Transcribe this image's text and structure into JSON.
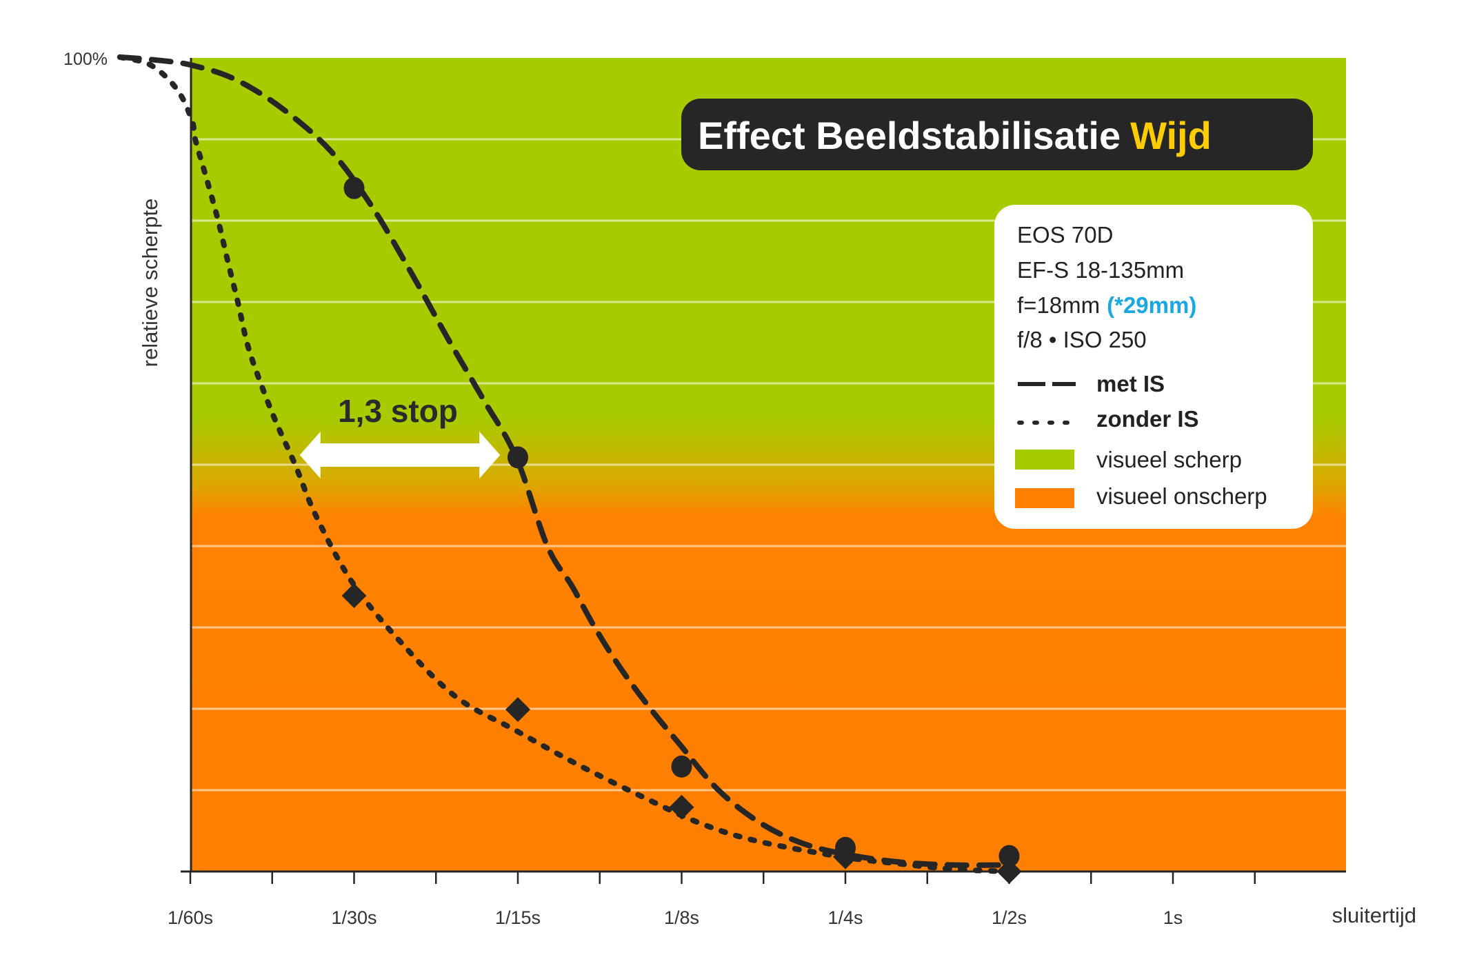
{
  "chart_data": {
    "type": "line",
    "title": "Effect Beeldstabilisatie",
    "title_highlight": "Wijd",
    "xlabel": "sluitertijd",
    "ylabel": "relatieve scherpte",
    "y_top_label": "100%",
    "ylim": [
      0,
      100
    ],
    "y_gridlines": [
      10,
      20,
      30,
      40,
      50,
      60,
      70,
      80,
      90
    ],
    "x_unit": "stops from 1/60s",
    "xlim": [
      0,
      7.1
    ],
    "categories": [
      "1/60s",
      "1/30s",
      "1/15s",
      "1/8s",
      "1/4s",
      "1/2s",
      "1s"
    ],
    "x_minor_ticks": [
      0.5,
      1.5,
      2.5,
      3.5,
      4.5,
      5.5,
      6.5
    ],
    "series": [
      {
        "name": "met IS",
        "style": "dashed",
        "marker": "circle",
        "points": [
          {
            "x": "1/30s",
            "stop": 1,
            "value": 84.0
          },
          {
            "x": "1/15s",
            "stop": 2,
            "value": 50.9
          },
          {
            "x": "1/8s",
            "stop": 3,
            "value": 12.9
          },
          {
            "x": "1/4s",
            "stop": 4,
            "value": 2.9
          },
          {
            "x": "1/2s",
            "stop": 5,
            "value": 1.9
          }
        ],
        "fit_curve": [
          [
            -0.43,
            100.1
          ],
          [
            -0.19,
            99.7
          ],
          [
            0.01,
            99.1
          ],
          [
            0.27,
            97.4
          ],
          [
            0.56,
            93.8
          ],
          [
            0.86,
            88.5
          ],
          [
            1.11,
            81.7
          ],
          [
            1.36,
            73.2
          ],
          [
            1.57,
            65.6
          ],
          [
            1.79,
            58.0
          ],
          [
            1.99,
            50.9
          ],
          [
            2.18,
            40.0
          ],
          [
            2.33,
            35.1
          ],
          [
            2.47,
            30.0
          ],
          [
            2.63,
            24.9
          ],
          [
            2.81,
            20.0
          ],
          [
            2.99,
            15.6
          ],
          [
            3.22,
            10.1
          ],
          [
            3.47,
            6.1
          ],
          [
            3.72,
            3.6
          ],
          [
            3.98,
            2.2
          ],
          [
            4.31,
            1.2
          ],
          [
            4.65,
            0.8
          ],
          [
            4.99,
            0.8
          ]
        ]
      },
      {
        "name": "zonder IS",
        "style": "dotted",
        "marker": "diamond",
        "points": [
          {
            "x": "1/30s",
            "stop": 1,
            "value": 33.9
          },
          {
            "x": "1/15s",
            "stop": 2,
            "value": 19.9
          },
          {
            "x": "1/8s",
            "stop": 3,
            "value": 7.9
          },
          {
            "x": "1/4s",
            "stop": 4,
            "value": 1.8
          },
          {
            "x": "1/2s",
            "stop": 5,
            "value": 0.0
          }
        ],
        "fit_curve": [
          [
            -0.43,
            100.1
          ],
          [
            -0.24,
            99.1
          ],
          [
            -0.08,
            96.1
          ],
          [
            0.01,
            92.3
          ],
          [
            0.03,
            90.0
          ],
          [
            0.1,
            85.1
          ],
          [
            0.17,
            80.0
          ],
          [
            0.23,
            74.9
          ],
          [
            0.29,
            70.0
          ],
          [
            0.35,
            64.7
          ],
          [
            0.43,
            60.0
          ],
          [
            0.52,
            55.4
          ],
          [
            0.64,
            50.0
          ],
          [
            0.77,
            43.6
          ],
          [
            0.99,
            35.5
          ],
          [
            1.28,
            28.3
          ],
          [
            1.62,
            21.5
          ],
          [
            1.99,
            17.3
          ],
          [
            2.37,
            13.1
          ],
          [
            2.8,
            8.8
          ],
          [
            3.13,
            5.8
          ],
          [
            3.47,
            3.7
          ],
          [
            3.98,
            1.8
          ],
          [
            4.31,
            1.0
          ],
          [
            4.65,
            0.3
          ],
          [
            4.99,
            0.0
          ]
        ]
      }
    ],
    "zones": [
      {
        "name": "visueel scherp",
        "color": "#A6CC00",
        "from": 60,
        "to": 100
      },
      {
        "name": "visueel onscherp",
        "color": "#FF7F00",
        "from": 0,
        "to": 45
      }
    ],
    "annotation": {
      "text": "1,3 stop",
      "arrow_from_stop": 0.66,
      "arrow_to_stop": 1.9,
      "at_value": 51
    },
    "legend": {
      "placement": "top-right",
      "info_lines": [
        "EOS 70D",
        "EF-S 18-135mm",
        "f=18mm",
        "f/8 • ISO 250"
      ],
      "info_highlight": "(*29mm)",
      "entries": [
        {
          "label": "met IS",
          "kind": "dashed-line"
        },
        {
          "label": "zonder IS",
          "kind": "dotted-line"
        },
        {
          "label": "visueel scherp",
          "kind": "swatch",
          "color": "#A6CC00"
        },
        {
          "label": "visueel onscherp",
          "kind": "swatch",
          "color": "#FF7F00"
        }
      ]
    },
    "grid": true
  },
  "colors": {
    "green": "#A6CC00",
    "orange": "#FF7F00",
    "ink": "#262626",
    "title_bg": "#262626",
    "title_highlight": "#FFCC00",
    "info_highlight": "#1BA8E0"
  }
}
